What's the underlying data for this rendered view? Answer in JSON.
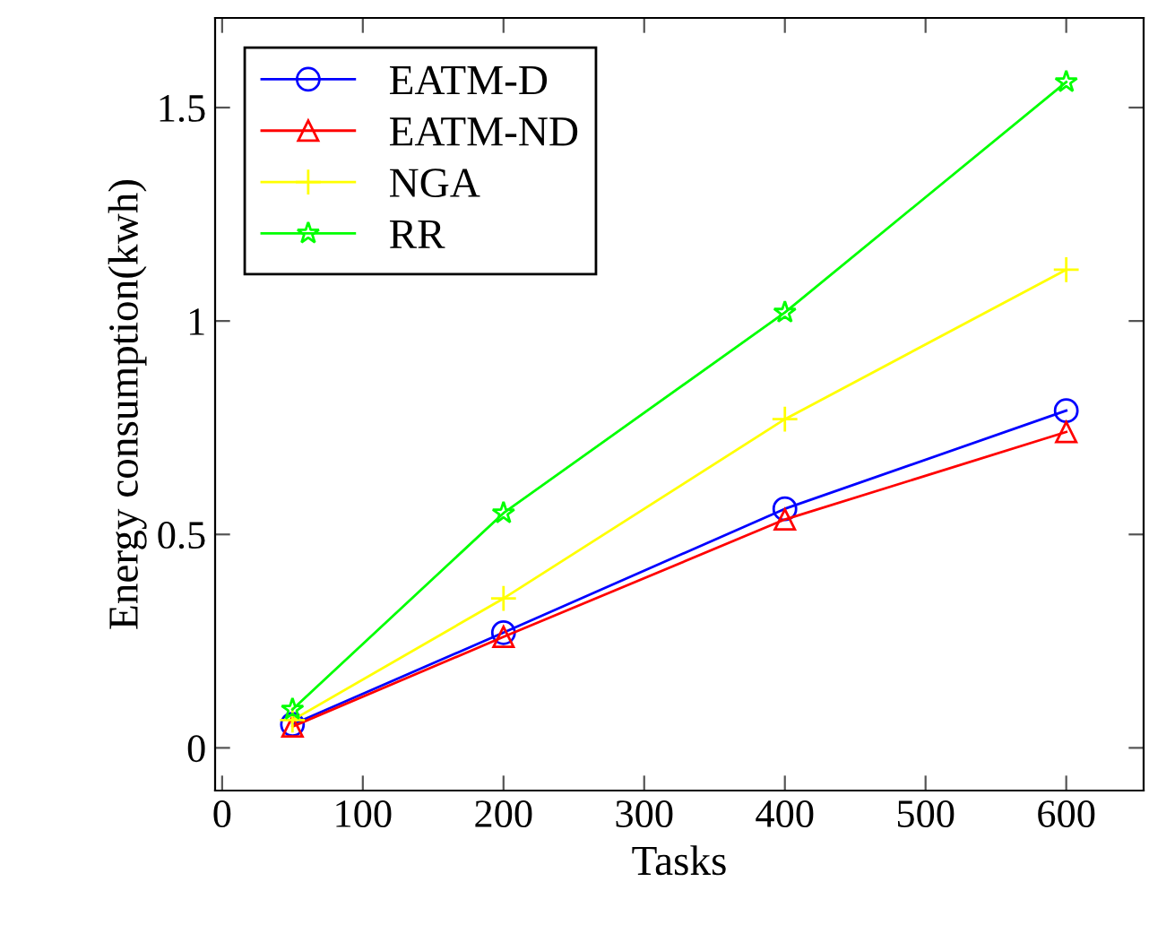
{
  "chart_data": {
    "type": "line",
    "xlabel": "Tasks",
    "ylabel": "Energy consumption(kwh)",
    "x": [
      50,
      200,
      400,
      600
    ],
    "series": [
      {
        "name": "EATM-D",
        "color": "#0000ff",
        "marker": "circle",
        "values": [
          0.055,
          0.27,
          0.56,
          0.79
        ]
      },
      {
        "name": "EATM-ND",
        "color": "#ff0000",
        "marker": "triangle",
        "values": [
          0.05,
          0.26,
          0.535,
          0.74
        ]
      },
      {
        "name": "NGA",
        "color": "#ffff00",
        "marker": "cross",
        "values": [
          0.065,
          0.35,
          0.77,
          1.12
        ]
      },
      {
        "name": "RR",
        "color": "#00ff00",
        "marker": "star",
        "values": [
          0.09,
          0.55,
          1.02,
          1.56
        ]
      }
    ],
    "xlim": [
      -5,
      655
    ],
    "ylim": [
      -0.1,
      1.71
    ],
    "xticks": [
      0,
      100,
      200,
      300,
      400,
      500,
      600
    ],
    "yticks": [
      0,
      0.5,
      1,
      1.5
    ],
    "grid": false,
    "legend": "top left",
    "line_style": "solid"
  }
}
